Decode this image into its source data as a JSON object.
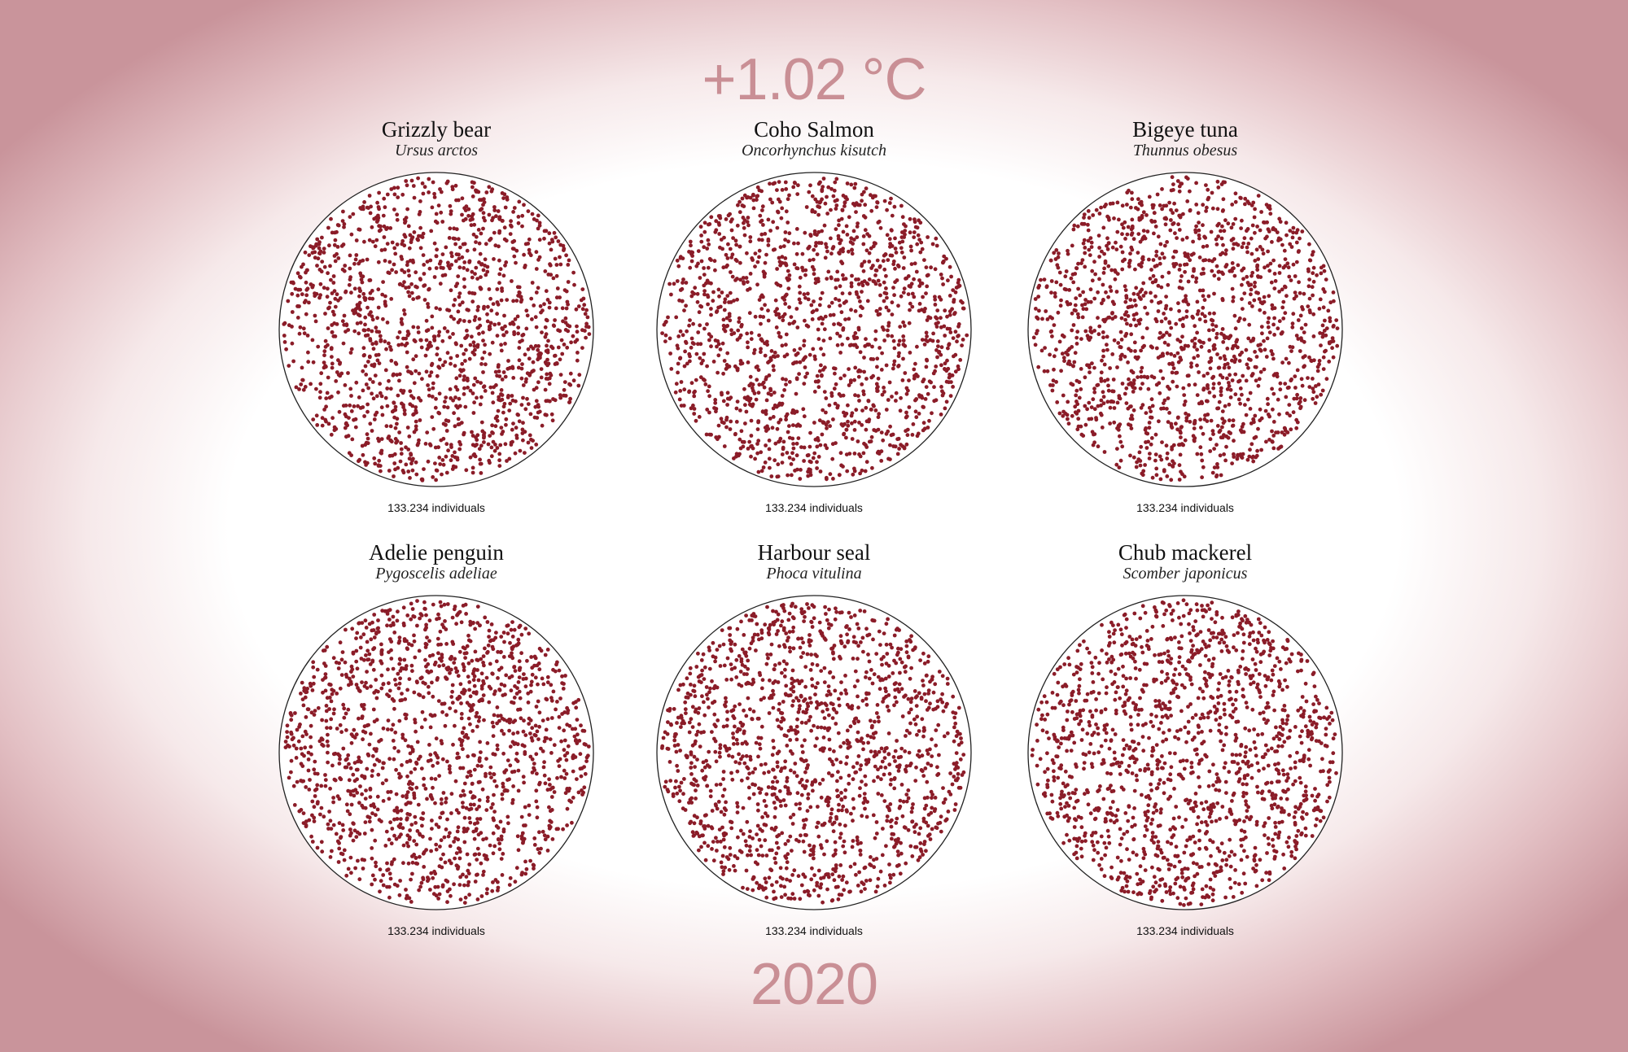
{
  "temperature": "+1.02 °C",
  "year": "2020",
  "dot_color": "#8b1c28",
  "ring_color": "#222222",
  "species": [
    {
      "common_name": "Grizzly bear",
      "latin_name": "Ursus arctos",
      "count_label": "133.234 individuals"
    },
    {
      "common_name": "Coho Salmon",
      "latin_name": "Oncorhynchus kisutch",
      "count_label": "133.234 individuals"
    },
    {
      "common_name": "Bigeye tuna",
      "latin_name": "Thunnus obesus",
      "count_label": "133.234 individuals"
    },
    {
      "common_name": "Adelie penguin",
      "latin_name": "Pygoscelis adeliae",
      "count_label": "133.234 individuals"
    },
    {
      "common_name": "Harbour seal",
      "latin_name": "Phoca vitulina",
      "count_label": "133.234 individuals"
    },
    {
      "common_name": "Chub mackerel",
      "latin_name": "Scomber japonicus",
      "count_label": "133.234 individuals"
    }
  ]
}
